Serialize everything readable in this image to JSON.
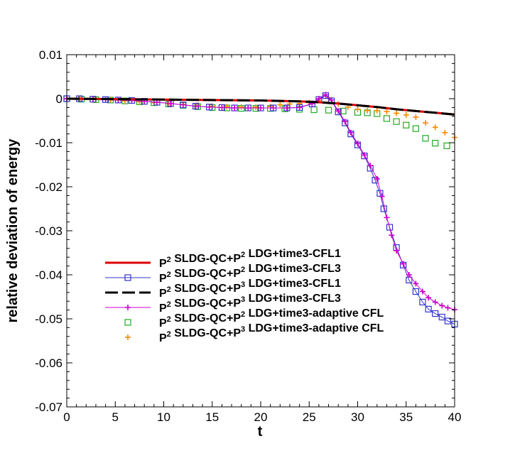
{
  "chart_data": {
    "type": "line",
    "title": "",
    "xlabel": "t",
    "ylabel": "relative deviation of energy",
    "xlim": [
      0,
      40
    ],
    "ylim": [
      -0.07,
      0.01
    ],
    "xticks": [
      0,
      5,
      10,
      15,
      20,
      25,
      30,
      35,
      40
    ],
    "yticks": [
      0.01,
      0,
      -0.01,
      -0.02,
      -0.03,
      -0.04,
      -0.05,
      -0.06,
      -0.07
    ],
    "xtick_labels": [
      "0",
      "5",
      "10",
      "15",
      "20",
      "25",
      "30",
      "35",
      "40"
    ],
    "ytick_labels": [
      "0.01",
      "0",
      "-0.01",
      "-0.02",
      "-0.03",
      "-0.04",
      "-0.05",
      "-0.06",
      "-0.07"
    ],
    "grid": false,
    "legend_position": "lower-center",
    "series": [
      {
        "name": "P2 SLDG-QC+P2 LDG+time3-CFL1",
        "legend": {
          "a": "P",
          "a_sup": "2",
          "b": " SLDG-QC+P",
          "b_sup": "2",
          "c": " LDG+time3-CFL1"
        },
        "style": "solid",
        "marker": "none",
        "color": "#dd0000",
        "line": true,
        "x": [
          0,
          5,
          10,
          15,
          20,
          22,
          24,
          26,
          28,
          30,
          32,
          34,
          36,
          38,
          40
        ],
        "y": [
          0,
          -0.0001,
          -0.0002,
          -0.0003,
          -0.0004,
          -0.0005,
          -0.0006,
          -0.0008,
          -0.0011,
          -0.0015,
          -0.0019,
          -0.0024,
          -0.0028,
          -0.0032,
          -0.0036
        ]
      },
      {
        "name": "P2 SLDG-QC+P2 LDG+time3-CFL3",
        "legend": {
          "a": "P",
          "a_sup": "2",
          "b": " SLDG-QC+P",
          "b_sup": "2",
          "c": " LDG+time3-CFL3"
        },
        "style": "solid",
        "marker": "square",
        "color": "#3333cc",
        "line": true,
        "x": [
          0,
          1.3,
          2.7,
          4,
          5.3,
          6.7,
          8,
          9.3,
          10.7,
          12,
          13.3,
          14.7,
          16,
          17.3,
          18.7,
          20,
          21.3,
          22.7,
          24,
          25.3,
          26,
          26.7,
          27.3,
          28,
          28.7,
          29.3,
          30,
          30.7,
          31.3,
          31.8,
          32.3,
          32.7,
          33.3,
          34,
          34.7,
          35.3,
          36,
          36.7,
          37.3,
          38,
          38.7,
          39.3,
          40
        ],
        "y": [
          0,
          0,
          -0.0001,
          -0.0002,
          -0.0003,
          -0.0004,
          -0.0006,
          -0.0008,
          -0.0011,
          -0.0014,
          -0.0017,
          -0.0019,
          -0.002,
          -0.0021,
          -0.0021,
          -0.0021,
          -0.0021,
          -0.0021,
          -0.002,
          -0.0012,
          -0.0002,
          0.0007,
          -0.0005,
          -0.003,
          -0.0055,
          -0.008,
          -0.0105,
          -0.013,
          -0.0158,
          -0.0185,
          -0.0215,
          -0.025,
          -0.0292,
          -0.0338,
          -0.0378,
          -0.0412,
          -0.0438,
          -0.0462,
          -0.0478,
          -0.0488,
          -0.0496,
          -0.0505,
          -0.0512
        ]
      },
      {
        "name": "P2 SLDG-QC+P3 LDG+time3-CFL1",
        "legend": {
          "a": "P",
          "a_sup": "2",
          "b": " SLDG-QC+P",
          "b_sup": "3",
          "c": " LDG+time3-CFL1"
        },
        "style": "dashed",
        "marker": "none",
        "color": "#000000",
        "line": true,
        "x": [
          0,
          5,
          10,
          15,
          20,
          22,
          24,
          26,
          28,
          30,
          32,
          34,
          36,
          38,
          40
        ],
        "y": [
          0,
          -0.0001,
          -0.0002,
          -0.0003,
          -0.0004,
          -0.0005,
          -0.0006,
          -0.0008,
          -0.0011,
          -0.0015,
          -0.0019,
          -0.0024,
          -0.0028,
          -0.0032,
          -0.0036
        ]
      },
      {
        "name": "P2 SLDG-QC+P3 LDG+time3-CFL3",
        "legend": {
          "a": "P",
          "a_sup": "2",
          "b": " SLDG-QC+P",
          "b_sup": "3",
          "c": " LDG+time3-CFL3"
        },
        "style": "solid",
        "marker": "plus",
        "color": "#cc00cc",
        "line": true,
        "x": [
          0,
          1.3,
          2.7,
          4,
          5.3,
          6.7,
          8,
          9.3,
          10.7,
          12,
          13.3,
          14.7,
          16,
          17.3,
          18.7,
          20,
          21.3,
          22.7,
          24,
          25.3,
          26,
          26.7,
          27.3,
          28,
          28.7,
          29.3,
          30,
          30.7,
          31.3,
          32,
          32.5,
          33,
          33.5,
          34,
          34.7,
          35.3,
          36,
          36.7,
          37.3,
          38,
          38.7,
          39.3,
          40
        ],
        "y": [
          0,
          0,
          -0.0001,
          -0.0002,
          -0.0003,
          -0.0004,
          -0.0006,
          -0.0008,
          -0.0011,
          -0.0014,
          -0.0017,
          -0.0019,
          -0.002,
          -0.0021,
          -0.0021,
          -0.0021,
          -0.0021,
          -0.0021,
          -0.002,
          -0.0011,
          0,
          0.0009,
          -0.0003,
          -0.0028,
          -0.0052,
          -0.0077,
          -0.0102,
          -0.0128,
          -0.0152,
          -0.0182,
          -0.0222,
          -0.027,
          -0.031,
          -0.0345,
          -0.0375,
          -0.04,
          -0.042,
          -0.0438,
          -0.0452,
          -0.0462,
          -0.047,
          -0.0475,
          -0.0479
        ]
      },
      {
        "name": "P2 SLDG-QC+P2 LDG+time3-adaptive CFL",
        "legend": {
          "a": "P",
          "a_sup": "2",
          "b": " SLDG-QC+P",
          "b_sup": "2",
          "c": " LDG+time3-adaptive CFL"
        },
        "style": "none",
        "marker": "square",
        "color": "#22aa22",
        "line": false,
        "x": [
          0,
          1.5,
          3,
          4.5,
          6,
          7.5,
          9,
          10.5,
          12,
          13.5,
          15,
          16.5,
          18,
          19.5,
          21,
          22.5,
          24,
          25.5,
          27,
          28.5,
          30,
          31,
          32,
          33,
          34,
          35,
          36,
          37,
          38,
          39.2
        ],
        "y": [
          0,
          -0.0001,
          -0.0002,
          -0.0003,
          -0.0005,
          -0.0007,
          -0.0009,
          -0.0012,
          -0.0015,
          -0.0018,
          -0.002,
          -0.0021,
          -0.0022,
          -0.0022,
          -0.0022,
          -0.0023,
          -0.0024,
          -0.0025,
          -0.0026,
          -0.0028,
          -0.0031,
          -0.0032,
          -0.0034,
          -0.0045,
          -0.0052,
          -0.006,
          -0.0068,
          -0.009,
          -0.0101,
          -0.0107
        ]
      },
      {
        "name": "P2 SLDG-QC+P3 LDG+time3-adaptive CFL",
        "legend": {
          "a": "P",
          "a_sup": "2",
          "b": " SLDG-QC+P",
          "b_sup": "3",
          "c": " LDG+time3-adaptive CFL"
        },
        "style": "none",
        "marker": "plus",
        "color": "#ff8800",
        "line": false,
        "x": [
          0,
          1.5,
          3,
          4.5,
          6,
          7.5,
          9,
          10.5,
          12,
          13.5,
          15,
          16.5,
          18,
          19.5,
          21,
          22,
          23,
          24,
          25,
          26,
          27,
          28,
          29,
          30,
          31,
          32,
          33,
          34,
          35,
          36,
          37,
          38,
          39,
          40
        ],
        "y": [
          0,
          -0.0001,
          -0.0002,
          -0.0003,
          -0.0005,
          -0.0007,
          -0.0009,
          -0.0011,
          -0.0013,
          -0.0015,
          -0.0017,
          -0.0018,
          -0.0019,
          -0.0019,
          -0.0018,
          -0.0014,
          -0.0012,
          -0.0011,
          -0.0009,
          -0.0004,
          0.0002,
          -0.0012,
          -0.0019,
          -0.0024,
          -0.0027,
          -0.0027,
          -0.0029,
          -0.0033,
          -0.0037,
          -0.0042,
          -0.0055,
          -0.0065,
          -0.0077,
          -0.0088
        ]
      }
    ]
  }
}
